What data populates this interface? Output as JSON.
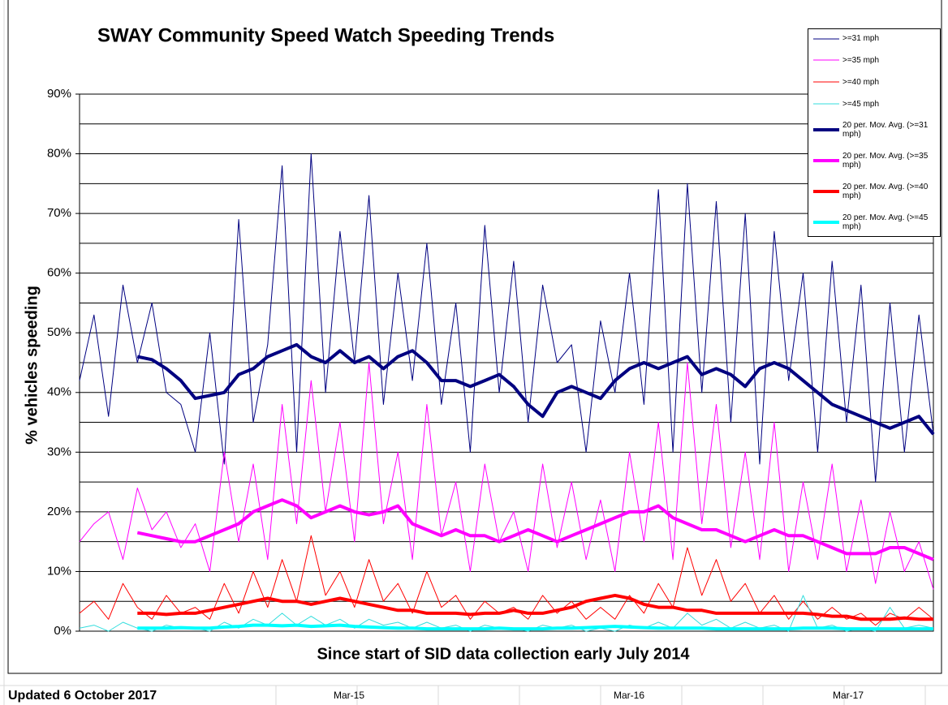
{
  "chart_data": {
    "type": "line",
    "title": "SWAY Community Speed Watch Speeding Trends",
    "x_label": "Since start of SID data collection early July 2014",
    "y_label": "% vehicles speeding",
    "categories": [
      null,
      null,
      null,
      null,
      null,
      null,
      null,
      null,
      null,
      null,
      null,
      null,
      null,
      null,
      null,
      null,
      null,
      null,
      null,
      null,
      null,
      null,
      null,
      null,
      null,
      null,
      null,
      null,
      null,
      null,
      null,
      null,
      null,
      null,
      null,
      null,
      null,
      null,
      null,
      null,
      null,
      null,
      null,
      null,
      null,
      null,
      null,
      null,
      null,
      null,
      null,
      null,
      null,
      null,
      null,
      null,
      null,
      null,
      null,
      null
    ],
    "ylim": [
      0,
      90
    ],
    "yticks": [
      {
        "value": 0,
        "label": "0%"
      },
      {
        "value": 10,
        "label": "10%"
      },
      {
        "value": 20,
        "label": "20%"
      },
      {
        "value": 30,
        "label": "30%"
      },
      {
        "value": 40,
        "label": "40%"
      },
      {
        "value": 50,
        "label": "50%"
      },
      {
        "value": 60,
        "label": "60%"
      },
      {
        "value": 70,
        "label": "70%"
      },
      {
        "value": 80,
        "label": "80%"
      },
      {
        "value": 90,
        "label": "90%"
      }
    ],
    "minor_grid": [
      5,
      15,
      25,
      35,
      45,
      55,
      65,
      75,
      85
    ],
    "grid": true,
    "legend": "top-right",
    "series": [
      {
        "name": ">=31 mph",
        "color": "#000080",
        "width": 1,
        "values": [
          42,
          53,
          36,
          58,
          45,
          55,
          40,
          38,
          30,
          50,
          28,
          69,
          35,
          48,
          78,
          30,
          80,
          40,
          67,
          45,
          73,
          38,
          60,
          42,
          65,
          38,
          55,
          30,
          68,
          40,
          62,
          35,
          58,
          45,
          48,
          30,
          52,
          40,
          60,
          38,
          74,
          30,
          75,
          40,
          72,
          35,
          70,
          28,
          67,
          42,
          60,
          30,
          62,
          35,
          58,
          25,
          55,
          30,
          53,
          33
        ]
      },
      {
        "name": ">=35 mph",
        "color": "#ff00ff",
        "width": 1,
        "values": [
          15,
          18,
          20,
          12,
          24,
          17,
          20,
          14,
          18,
          10,
          30,
          15,
          28,
          12,
          38,
          18,
          42,
          20,
          35,
          15,
          45,
          18,
          30,
          12,
          38,
          16,
          25,
          10,
          28,
          15,
          20,
          10,
          28,
          14,
          25,
          12,
          22,
          10,
          30,
          15,
          35,
          12,
          45,
          18,
          38,
          14,
          30,
          12,
          35,
          10,
          25,
          12,
          28,
          10,
          22,
          8,
          20,
          10,
          15,
          7
        ]
      },
      {
        "name": ">=40 mph",
        "color": "#ff0000",
        "width": 1,
        "values": [
          3,
          5,
          2,
          8,
          4,
          2,
          6,
          3,
          4,
          2,
          8,
          3,
          10,
          4,
          12,
          5,
          16,
          6,
          10,
          4,
          12,
          5,
          8,
          3,
          10,
          4,
          6,
          2,
          5,
          3,
          4,
          2,
          6,
          3,
          5,
          2,
          4,
          2,
          6,
          3,
          8,
          4,
          14,
          6,
          12,
          5,
          8,
          3,
          6,
          2,
          5,
          2,
          4,
          2,
          3,
          1,
          3,
          2,
          4,
          2
        ]
      },
      {
        "name": ">=45 mph",
        "color": "#33dddd",
        "width": 1,
        "values": [
          0.5,
          1,
          0,
          1.5,
          0.5,
          0,
          1,
          0.5,
          0.5,
          0,
          1.5,
          0.5,
          2,
          1,
          3,
          1,
          2.5,
          1,
          2,
          0.5,
          2,
          1,
          1.5,
          0.5,
          1.5,
          0.5,
          1,
          0,
          1,
          0.5,
          0.5,
          0,
          1,
          0.5,
          1,
          0,
          0.5,
          0,
          1,
          0.5,
          1.5,
          0.5,
          3,
          1,
          2,
          0.5,
          1.5,
          0.5,
          1,
          0,
          6,
          0.5,
          1,
          0,
          0.5,
          0,
          4,
          0.5,
          1,
          0.5
        ]
      },
      {
        "name": "20 per. Mov. Avg. (>=31 mph)",
        "color": "#000080",
        "width": 4,
        "values": [
          null,
          null,
          null,
          null,
          46,
          45.5,
          44,
          42,
          39,
          39.5,
          40,
          43,
          44,
          46,
          47,
          48,
          46,
          45,
          47,
          45,
          46,
          44,
          46,
          47,
          45,
          42,
          42,
          41,
          42,
          43,
          41,
          38,
          36,
          40,
          41,
          40,
          39,
          42,
          44,
          45,
          44,
          45,
          46,
          43,
          44,
          43,
          41,
          44,
          45,
          44,
          42,
          40,
          38,
          37,
          36,
          35,
          34,
          35,
          36,
          33
        ]
      },
      {
        "name": "20 per. Mov. Avg. (>=35 mph)",
        "color": "#ff00ff",
        "width": 4,
        "values": [
          null,
          null,
          null,
          null,
          16.5,
          16,
          15.5,
          15,
          15,
          16,
          17,
          18,
          20,
          21,
          22,
          21,
          19,
          20,
          21,
          20,
          19.5,
          20,
          21,
          18,
          17,
          16,
          17,
          16,
          16,
          15,
          16,
          17,
          16,
          15,
          16,
          17,
          18,
          19,
          20,
          20,
          21,
          19,
          18,
          17,
          17,
          16,
          15,
          16,
          17,
          16,
          16,
          15,
          14,
          13,
          13,
          13,
          14,
          14,
          13,
          12
        ]
      },
      {
        "name": "20 per. Mov. Avg. (>=40 mph)",
        "color": "#ff0000",
        "width": 4,
        "values": [
          null,
          null,
          null,
          null,
          3,
          3,
          2.8,
          3,
          3,
          3.5,
          4,
          4.5,
          5,
          5.5,
          5,
          5,
          4.5,
          5,
          5.5,
          5,
          4.5,
          4,
          3.5,
          3.5,
          3,
          3,
          3,
          2.8,
          3,
          3,
          3.5,
          3,
          3,
          3.5,
          4,
          5,
          5.5,
          6,
          5.5,
          4.5,
          4,
          4,
          3.5,
          3.5,
          3,
          3,
          3,
          3,
          3,
          3,
          3,
          2.8,
          2.5,
          2.5,
          2,
          2,
          2,
          2.2,
          2,
          2
        ]
      },
      {
        "name": "20 per. Mov. Avg. (>=45 mph)",
        "color": "#00ffff",
        "width": 4,
        "values": [
          null,
          null,
          null,
          null,
          0.5,
          0.5,
          0.5,
          0.6,
          0.5,
          0.5,
          0.7,
          0.8,
          1,
          1,
          0.9,
          1,
          0.8,
          0.9,
          1,
          0.8,
          0.7,
          0.6,
          0.5,
          0.5,
          0.4,
          0.4,
          0.4,
          0.4,
          0.4,
          0.5,
          0.4,
          0.4,
          0.4,
          0.5,
          0.5,
          0.6,
          0.7,
          0.8,
          0.7,
          0.6,
          0.5,
          0.5,
          0.5,
          0.5,
          0.4,
          0.4,
          0.4,
          0.4,
          0.4,
          0.4,
          0.5,
          0.5,
          0.5,
          0.4,
          0.4,
          0.4,
          0.4,
          0.4,
          0.4,
          0.4
        ]
      }
    ]
  },
  "footer": {
    "updated": "Updated 6 October 2017",
    "months": [
      "Mar-15",
      "Mar-16",
      "Mar-17"
    ]
  }
}
